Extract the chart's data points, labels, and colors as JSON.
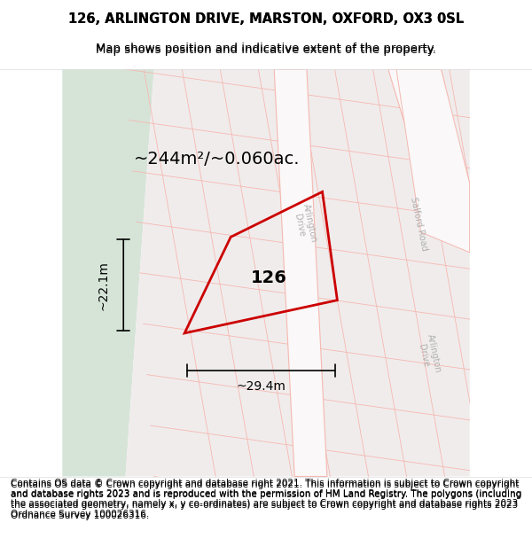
{
  "title_line1": "126, ARLINGTON DRIVE, MARSTON, OXFORD, OX3 0SL",
  "title_line2": "Map shows position and indicative extent of the property.",
  "footer_text": "Contains OS data © Crown copyright and database right 2021. This information is subject to Crown copyright and database rights 2023 and is reproduced with the permission of HM Land Registry. The polygons (including the associated geometry, namely x, y co-ordinates) are subject to Crown copyright and database rights 2023 Ordnance Survey 100026316.",
  "bg_map_color": "#f0efef",
  "bg_green_color": "#d6e4d8",
  "road_fill_color": "#ffffff",
  "road_line_color": "#f5b8b0",
  "plot_outline_color": "#cc0000",
  "plot_fill_color": "#f5eded",
  "dimension_color": "#000000",
  "road_label_color": "#b0b0b0",
  "plot_label": "126",
  "area_label": "~244m²/~0.060ac.",
  "dim_width": "~29.4m",
  "dim_height": "~22.1m",
  "title_fontsize": 10.5,
  "subtitle_fontsize": 9.5,
  "footer_fontsize": 7.5,
  "label_fontsize": 14,
  "area_fontsize": 14,
  "dim_fontsize": 10
}
